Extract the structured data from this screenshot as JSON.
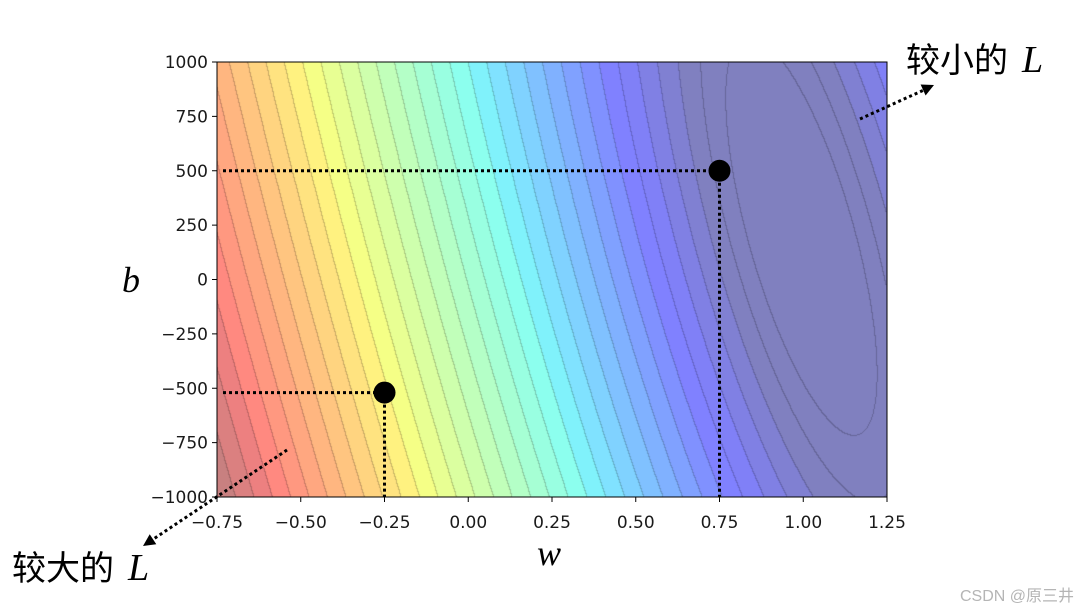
{
  "chart_data": {
    "type": "heatmap",
    "style": "contour",
    "colormap": "jet",
    "xlabel": "w",
    "ylabel": "b",
    "xlim": [
      -0.75,
      1.25
    ],
    "ylim": [
      -1000,
      1000
    ],
    "xticks": [
      -0.75,
      -0.5,
      -0.25,
      0.0,
      0.25,
      0.5,
      0.75,
      1.0,
      1.25
    ],
    "xtick_labels": [
      "−0.75",
      "−0.50",
      "−0.25",
      "0.00",
      "0.25",
      "0.50",
      "0.75",
      "1.00",
      "1.25"
    ],
    "yticks": [
      1000,
      750,
      500,
      250,
      0,
      -250,
      -500,
      -750,
      -1000
    ],
    "ytick_labels": [
      "1000",
      "750",
      "500",
      "250",
      "0",
      "−250",
      "−500",
      "−750",
      "−1000"
    ],
    "points": [
      {
        "x": -0.25,
        "y": -520
      },
      {
        "x": 0.75,
        "y": 500
      }
    ],
    "annotations": [
      {
        "text": "较小的",
        "symbol": "L",
        "position": "top-right"
      },
      {
        "text": "较大的",
        "symbol": "L",
        "position": "bottom-left"
      }
    ],
    "grid": false
  },
  "watermark": "CSDN @原三井"
}
